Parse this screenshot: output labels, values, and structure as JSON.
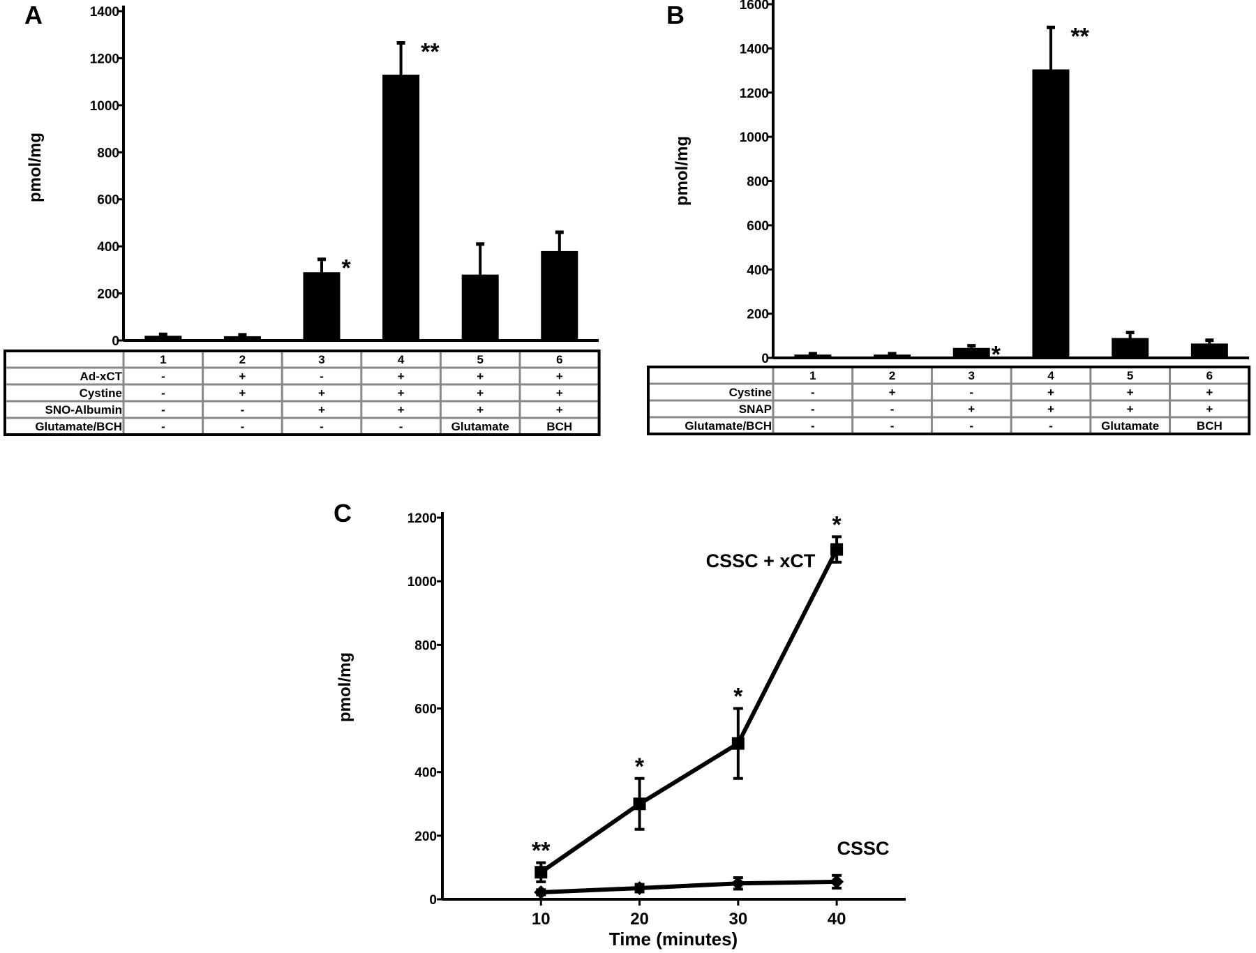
{
  "chart_data": [
    {
      "panel": "A",
      "type": "bar",
      "ylabel": "pmol/mg",
      "ylim": [
        0,
        1400
      ],
      "yticks": [
        0,
        200,
        400,
        600,
        800,
        1000,
        1200,
        1400
      ],
      "categories": [
        "1",
        "2",
        "3",
        "4",
        "5",
        "6"
      ],
      "values": [
        20,
        18,
        290,
        1130,
        280,
        380
      ],
      "errors": [
        6,
        6,
        55,
        135,
        130,
        80
      ],
      "significance": [
        "",
        "",
        "*",
        "**",
        "",
        ""
      ],
      "table": {
        "rows": [
          {
            "label": "Ad-xCT",
            "cells": [
              "-",
              "+",
              "-",
              "+",
              "+",
              "+"
            ]
          },
          {
            "label": "Cystine",
            "cells": [
              "-",
              "+",
              "+",
              "+",
              "+",
              "+"
            ]
          },
          {
            "label": "SNO-Albumin",
            "cells": [
              "-",
              "-",
              "+",
              "+",
              "+",
              "+"
            ]
          },
          {
            "label": "Glutamate/BCH",
            "cells": [
              "-",
              "-",
              "-",
              "-",
              "Glutamate",
              "BCH"
            ]
          }
        ]
      }
    },
    {
      "panel": "B",
      "type": "bar",
      "ylabel": "pmol/mg",
      "ylim": [
        0,
        1600
      ],
      "yticks": [
        0,
        200,
        400,
        600,
        800,
        1000,
        1200,
        1400,
        1600
      ],
      "categories": [
        "1",
        "2",
        "3",
        "4",
        "5",
        "6"
      ],
      "values": [
        15,
        15,
        45,
        1305,
        90,
        65
      ],
      "errors": [
        4,
        4,
        10,
        190,
        25,
        15
      ],
      "significance": [
        "",
        "",
        "*",
        "**",
        "",
        ""
      ],
      "table": {
        "rows": [
          {
            "label": "Cystine",
            "cells": [
              "-",
              "+",
              "-",
              "+",
              "+",
              "+"
            ]
          },
          {
            "label": "SNAP",
            "cells": [
              "-",
              "-",
              "+",
              "+",
              "+",
              "+"
            ]
          },
          {
            "label": "Glutamate/BCH",
            "cells": [
              "-",
              "-",
              "-",
              "-",
              "Glutamate",
              "BCH"
            ]
          }
        ]
      }
    },
    {
      "panel": "C",
      "type": "line",
      "xlabel": "Time (minutes)",
      "ylabel": "pmol/mg",
      "x": [
        10,
        20,
        30,
        40
      ],
      "xlim": [
        0,
        47
      ],
      "ylim": [
        0,
        1200
      ],
      "yticks": [
        0,
        200,
        400,
        600,
        800,
        1000,
        1200
      ],
      "series": [
        {
          "name": "CSSC + xCT",
          "marker": "square",
          "values": [
            85,
            300,
            490,
            1100
          ],
          "errors": [
            30,
            80,
            110,
            40
          ],
          "significance": [
            "**",
            "*",
            "*",
            "*"
          ]
        },
        {
          "name": "CSSC",
          "marker": "diamond",
          "values": [
            22,
            35,
            50,
            55
          ],
          "errors": [
            8,
            12,
            18,
            20
          ],
          "significance": [
            "",
            "",
            "",
            ""
          ]
        }
      ]
    }
  ]
}
